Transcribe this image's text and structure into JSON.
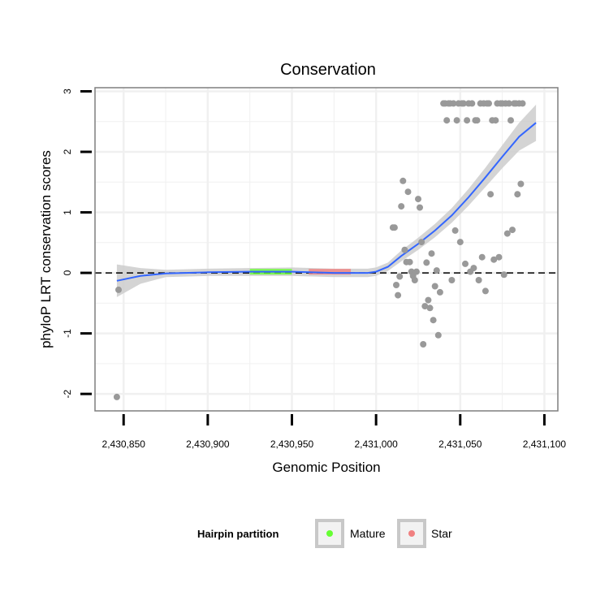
{
  "chart_data": {
    "type": "scatter",
    "title": "Conservation",
    "xlabel": "Genomic Position",
    "ylabel": "phyloP LRT conservation scores",
    "xlim": [
      2430833,
      2431108
    ],
    "ylim": [
      -2.28,
      3.06
    ],
    "x_ticks": [
      2430850,
      2430900,
      2430950,
      2431000,
      2431050,
      2431100
    ],
    "x_tick_labels": [
      "2,430,850",
      "2,430,900",
      "2,430,950",
      "2,431,000",
      "2,431,050",
      "2,431,100"
    ],
    "y_ticks": [
      -2,
      -1,
      0,
      1,
      2,
      3
    ],
    "y_tick_labels": [
      "-2",
      "-1",
      "0",
      "1",
      "2",
      "3"
    ],
    "grid": true,
    "reference_line": {
      "y": 0,
      "style": "dashed",
      "color": "#000000"
    },
    "points_color": "#999999",
    "points": [
      [
        2430846,
        -2.05
      ],
      [
        2430847,
        -0.28
      ],
      [
        2431010,
        0.75
      ],
      [
        2431011,
        0.75
      ],
      [
        2431012,
        -0.2
      ],
      [
        2431013,
        -0.37
      ],
      [
        2431014,
        -0.06
      ],
      [
        2431015,
        1.1
      ],
      [
        2431016,
        1.52
      ],
      [
        2431017,
        0.38
      ],
      [
        2431018,
        0.18
      ],
      [
        2431019,
        1.34
      ],
      [
        2431020,
        0.18
      ],
      [
        2431021,
        0.02
      ],
      [
        2431022,
        -0.05
      ],
      [
        2431023,
        -0.12
      ],
      [
        2431024,
        0.02
      ],
      [
        2431025,
        1.22
      ],
      [
        2431026,
        1.08
      ],
      [
        2431027,
        0.51
      ],
      [
        2431028,
        -1.18
      ],
      [
        2431029,
        -0.55
      ],
      [
        2431030,
        0.17
      ],
      [
        2431031,
        -0.45
      ],
      [
        2431032,
        -0.58
      ],
      [
        2431033,
        0.32
      ],
      [
        2431034,
        -0.78
      ],
      [
        2431035,
        -0.22
      ],
      [
        2431036,
        0.04
      ],
      [
        2431037,
        -1.03
      ],
      [
        2431038,
        -0.32
      ],
      [
        2431040,
        2.8
      ],
      [
        2431041,
        2.8
      ],
      [
        2431042,
        2.52
      ],
      [
        2431043,
        2.8
      ],
      [
        2431044,
        2.8
      ],
      [
        2431045,
        -0.12
      ],
      [
        2431046,
        2.8
      ],
      [
        2431047,
        0.7
      ],
      [
        2431048,
        2.52
      ],
      [
        2431049,
        2.8
      ],
      [
        2431050,
        0.51
      ],
      [
        2431051,
        2.8
      ],
      [
        2431052,
        2.8
      ],
      [
        2431053,
        0.15
      ],
      [
        2431054,
        2.52
      ],
      [
        2431055,
        2.8
      ],
      [
        2431056,
        0.02
      ],
      [
        2431057,
        2.8
      ],
      [
        2431058,
        0.08
      ],
      [
        2431059,
        2.52
      ],
      [
        2431060,
        2.52
      ],
      [
        2431061,
        -0.12
      ],
      [
        2431062,
        2.8
      ],
      [
        2431063,
        0.26
      ],
      [
        2431064,
        2.8
      ],
      [
        2431065,
        -0.3
      ],
      [
        2431066,
        2.8
      ],
      [
        2431067,
        2.8
      ],
      [
        2431068,
        1.3
      ],
      [
        2431069,
        2.52
      ],
      [
        2431070,
        0.22
      ],
      [
        2431071,
        2.52
      ],
      [
        2431072,
        2.8
      ],
      [
        2431073,
        0.26
      ],
      [
        2431074,
        2.8
      ],
      [
        2431075,
        2.8
      ],
      [
        2431076,
        -0.03
      ],
      [
        2431077,
        2.8
      ],
      [
        2431078,
        0.65
      ],
      [
        2431079,
        2.8
      ],
      [
        2431080,
        2.52
      ],
      [
        2431081,
        0.71
      ],
      [
        2431082,
        2.8
      ],
      [
        2431083,
        2.8
      ],
      [
        2431084,
        1.3
      ],
      [
        2431085,
        2.8
      ],
      [
        2431086,
        1.47
      ],
      [
        2431087,
        2.8
      ]
    ],
    "smooth_color": "#3366ff",
    "smooth": [
      [
        2430846,
        -0.13
      ],
      [
        2430860,
        -0.05
      ],
      [
        2430875,
        -0.01
      ],
      [
        2430900,
        0.01
      ],
      [
        2430925,
        0.02
      ],
      [
        2430950,
        0.02
      ],
      [
        2430975,
        0.0
      ],
      [
        2430995,
        0.0
      ],
      [
        2431000,
        0.02
      ],
      [
        2431007,
        0.1
      ],
      [
        2431015,
        0.28
      ],
      [
        2431025,
        0.48
      ],
      [
        2431035,
        0.7
      ],
      [
        2431045,
        0.95
      ],
      [
        2431055,
        1.25
      ],
      [
        2431065,
        1.58
      ],
      [
        2431075,
        1.92
      ],
      [
        2431085,
        2.25
      ],
      [
        2431095,
        2.48
      ]
    ],
    "ribbon_color": "#cccccc",
    "ribbon": [
      [
        2430846,
        -0.4,
        0.14
      ],
      [
        2430860,
        -0.18,
        0.08
      ],
      [
        2430875,
        -0.07,
        0.05
      ],
      [
        2430900,
        -0.05,
        0.07
      ],
      [
        2430925,
        -0.05,
        0.08
      ],
      [
        2430950,
        -0.05,
        0.09
      ],
      [
        2430975,
        -0.07,
        0.07
      ],
      [
        2430995,
        -0.07,
        0.07
      ],
      [
        2431000,
        -0.05,
        0.09
      ],
      [
        2431007,
        0.03,
        0.17
      ],
      [
        2431015,
        0.19,
        0.37
      ],
      [
        2431025,
        0.38,
        0.58
      ],
      [
        2431035,
        0.59,
        0.81
      ],
      [
        2431045,
        0.83,
        1.07
      ],
      [
        2431055,
        1.11,
        1.39
      ],
      [
        2431065,
        1.42,
        1.74
      ],
      [
        2431075,
        1.73,
        2.11
      ],
      [
        2431085,
        2.02,
        2.48
      ],
      [
        2431095,
        2.18,
        2.78
      ]
    ],
    "partition_segments": [
      {
        "name": "Mature",
        "x_start": 2430925,
        "x_end": 2430950,
        "y": 0.02,
        "color": "#66ff33"
      },
      {
        "name": "Star",
        "x_start": 2430960,
        "x_end": 2430985,
        "y": 0.02,
        "color": "#f08080"
      }
    ],
    "legend": {
      "title": "Hairpin partition",
      "placement": "bottom",
      "items": [
        {
          "label": "Mature",
          "color": "#66ff33"
        },
        {
          "label": "Star",
          "color": "#f08080"
        }
      ]
    }
  }
}
